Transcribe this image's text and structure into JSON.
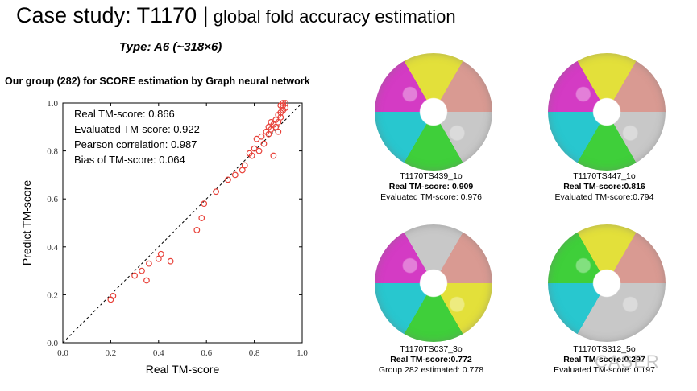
{
  "slide": {
    "title_main": "Case study: T1170 |",
    "title_sub": " global fold accuracy estimation",
    "type_label": "Type: A6 (~318×6)",
    "chart_heading": "Our group (282) for SCORE estimation by Graph neural network",
    "watermark": "CASER"
  },
  "chart_data": {
    "type": "scatter",
    "xlabel": "Real TM-score",
    "ylabel": "Predict TM-score",
    "xlim": [
      0.0,
      1.0
    ],
    "ylim": [
      0.0,
      1.0
    ],
    "xticks": [
      "0.0",
      "0.2",
      "0.4",
      "0.6",
      "0.8",
      "1.0"
    ],
    "yticks": [
      "0.0",
      "0.2",
      "0.4",
      "0.6",
      "0.8",
      "1.0"
    ],
    "reference_line": "y = x (dashed)",
    "marker_color": "#e8423a",
    "annotations": [
      "Real TM-score: 0.866",
      "Evaluated TM-score: 0.922",
      "Pearson correlation: 0.987",
      "Bias of TM-score: 0.064"
    ],
    "points": [
      [
        0.2,
        0.18
      ],
      [
        0.21,
        0.195
      ],
      [
        0.3,
        0.28
      ],
      [
        0.33,
        0.3
      ],
      [
        0.35,
        0.26
      ],
      [
        0.36,
        0.33
      ],
      [
        0.4,
        0.35
      ],
      [
        0.41,
        0.37
      ],
      [
        0.45,
        0.34
      ],
      [
        0.56,
        0.47
      ],
      [
        0.58,
        0.52
      ],
      [
        0.59,
        0.58
      ],
      [
        0.64,
        0.63
      ],
      [
        0.69,
        0.68
      ],
      [
        0.72,
        0.7
      ],
      [
        0.75,
        0.72
      ],
      [
        0.76,
        0.74
      ],
      [
        0.78,
        0.79
      ],
      [
        0.79,
        0.78
      ],
      [
        0.8,
        0.81
      ],
      [
        0.81,
        0.85
      ],
      [
        0.82,
        0.8
      ],
      [
        0.83,
        0.86
      ],
      [
        0.84,
        0.83
      ],
      [
        0.85,
        0.88
      ],
      [
        0.86,
        0.9
      ],
      [
        0.86,
        0.87
      ],
      [
        0.87,
        0.89
      ],
      [
        0.88,
        0.91
      ],
      [
        0.88,
        0.78
      ],
      [
        0.89,
        0.93
      ],
      [
        0.89,
        0.9
      ],
      [
        0.9,
        0.95
      ],
      [
        0.9,
        0.92
      ],
      [
        0.91,
        0.96
      ],
      [
        0.91,
        0.94
      ],
      [
        0.92,
        0.99
      ],
      [
        0.92,
        0.97
      ],
      [
        0.93,
        1.0
      ],
      [
        0.93,
        0.98
      ],
      [
        0.9,
        0.88
      ],
      [
        0.87,
        0.92
      ],
      [
        0.91,
        0.99
      ],
      [
        0.92,
        1.0
      ]
    ]
  },
  "panels": [
    {
      "name": "T1170TS439_1o",
      "real": "Real TM-score: 0.909",
      "eval": "Evaluated TM-score: 0.976"
    },
    {
      "name": "T1170TS447_1o",
      "real": "Real TM-score:0.816",
      "eval": "Evaluated TM-score:0.794"
    },
    {
      "name": "T1170TS037_3o",
      "real": "Real TM-score:0.772",
      "eval": "Group 282 estimated: 0.778"
    },
    {
      "name": "T1170TS312_5o",
      "real": "Real TM-score:0.297",
      "eval": "Evaluated TM-score: 0.197"
    }
  ],
  "colors": {
    "yellow": "#e3e03a",
    "salmon": "#d99a92",
    "grey": "#c8c8c8",
    "cyan": "#28c7cf",
    "green": "#3fcf3a",
    "magenta": "#d43bc4"
  }
}
